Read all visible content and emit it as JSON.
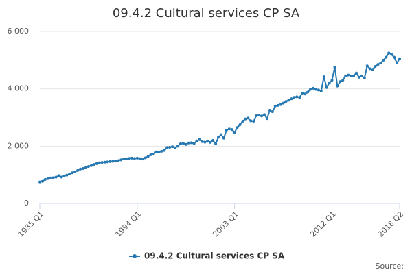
{
  "chart_data": {
    "type": "line",
    "title": "09.4.2 Cultural services CP SA",
    "categories": [
      "1985 Q1",
      null,
      null,
      null,
      null,
      null,
      null,
      null,
      null,
      null,
      null,
      null,
      null,
      null,
      null,
      null,
      null,
      null,
      null,
      null,
      null,
      null,
      null,
      null,
      null,
      null,
      null,
      null,
      null,
      null,
      null,
      null,
      null,
      null,
      null,
      null,
      "1994 Q1",
      null,
      null,
      null,
      null,
      null,
      null,
      null,
      null,
      null,
      null,
      null,
      null,
      null,
      null,
      null,
      null,
      null,
      null,
      null,
      null,
      null,
      null,
      null,
      null,
      null,
      null,
      null,
      null,
      null,
      null,
      null,
      null,
      null,
      null,
      null,
      "2003 Q1",
      null,
      null,
      null,
      null,
      null,
      null,
      null,
      null,
      null,
      null,
      null,
      null,
      null,
      null,
      null,
      null,
      null,
      null,
      null,
      null,
      null,
      null,
      null,
      null,
      null,
      null,
      null,
      null,
      null,
      null,
      null,
      null,
      null,
      null,
      null,
      "2012 Q1",
      null,
      null,
      null,
      null,
      null,
      null,
      null,
      null,
      null,
      null,
      null,
      null,
      null,
      null,
      null,
      null,
      null,
      null,
      null,
      null,
      null,
      null,
      null,
      null,
      "2018 Q2"
    ],
    "series": [
      {
        "name": "09.4.2 Cultural services CP SA",
        "color": "#2678b2",
        "values": [
          750,
          770,
          840,
          870,
          890,
          900,
          920,
          970,
          920,
          960,
          990,
          1030,
          1070,
          1100,
          1150,
          1200,
          1220,
          1250,
          1290,
          1320,
          1360,
          1390,
          1420,
          1430,
          1440,
          1450,
          1460,
          1470,
          1480,
          1490,
          1520,
          1550,
          1560,
          1570,
          1580,
          1570,
          1580,
          1560,
          1550,
          1590,
          1640,
          1700,
          1720,
          1800,
          1790,
          1820,
          1850,
          1950,
          1960,
          1980,
          1940,
          2000,
          2080,
          2100,
          2060,
          2110,
          2120,
          2090,
          2180,
          2230,
          2160,
          2140,
          2170,
          2130,
          2200,
          2080,
          2310,
          2400,
          2280,
          2560,
          2600,
          2580,
          2480,
          2650,
          2750,
          2870,
          2950,
          2980,
          2880,
          2870,
          3060,
          3080,
          3050,
          3100,
          2960,
          3250,
          3200,
          3400,
          3420,
          3450,
          3500,
          3560,
          3600,
          3650,
          3700,
          3720,
          3700,
          3850,
          3820,
          3880,
          3980,
          4020,
          3980,
          3960,
          3920,
          4420,
          4050,
          4200,
          4300,
          4750,
          4100,
          4250,
          4300,
          4450,
          4480,
          4450,
          4450,
          4550,
          4400,
          4450,
          4380,
          4800,
          4700,
          4680,
          4780,
          4850,
          4900,
          5000,
          5100,
          5250,
          5200,
          5100,
          4900,
          5050
        ]
      }
    ],
    "ylim": [
      0,
      6000
    ],
    "yticks": [
      0,
      {
        "value": 2000,
        "label": "2 000"
      },
      {
        "value": 4000,
        "label": "4 000"
      },
      {
        "value": 6000,
        "label": "6 000"
      }
    ],
    "grid": true,
    "source": "Source:"
  }
}
